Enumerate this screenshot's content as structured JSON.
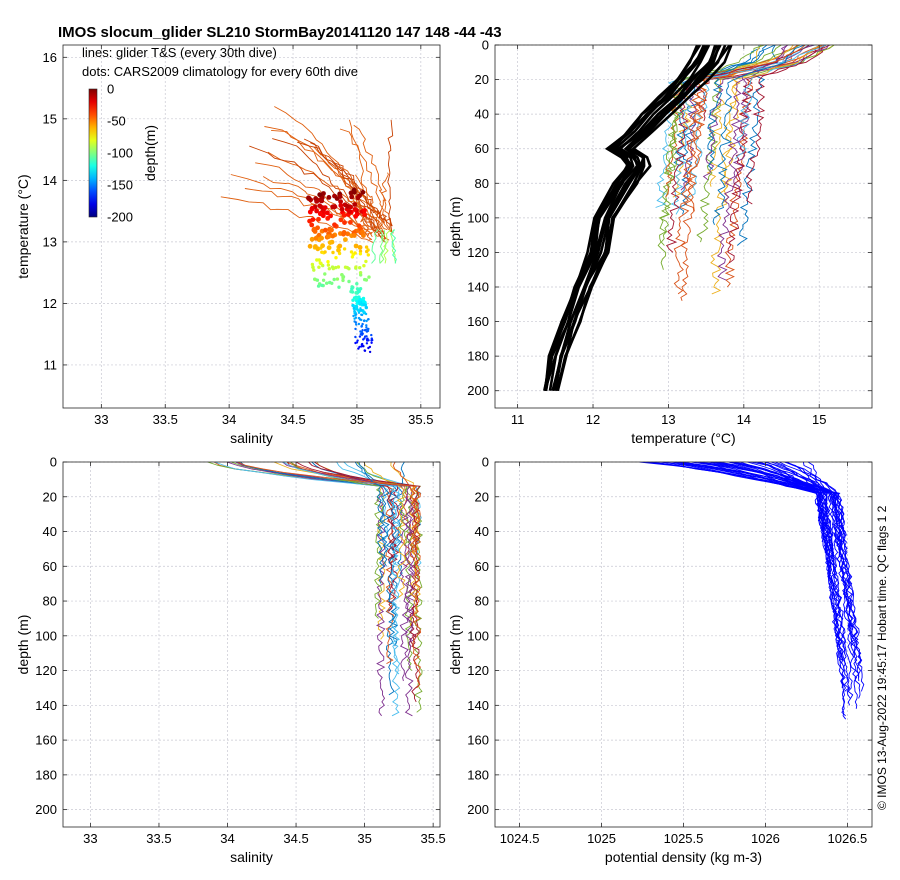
{
  "figure": {
    "title": "IMOS slocum_glider SL210 StormBay20141120 147  148  -44  -43",
    "stamp": "© IMOS 13-Aug-2022 19:45:17 Hobart time. QC flags 1  2"
  },
  "chart_data": [
    {
      "id": "ts",
      "type": "scatter",
      "xlabel": "salinity",
      "ylabel": "temperature (°C)",
      "xlim": [
        32.7,
        35.65
      ],
      "ylim": [
        10.3,
        16.2
      ],
      "xticks": [
        33,
        33.5,
        34,
        34.5,
        35,
        35.5
      ],
      "yticks": [
        11,
        12,
        13,
        14,
        15,
        16
      ],
      "grid": true,
      "annotations": [
        "lines: glider T&S (every 30th dive)",
        "dots: CARS2009 climatology for every 60th dive"
      ],
      "colorbar": {
        "label": "depth(m)",
        "ticks": [
          0,
          -50,
          -100,
          -150,
          -200
        ],
        "range": [
          -200,
          0
        ]
      },
      "series": [
        {
          "kind": "glider_lines",
          "shallow_end": [
            34.5,
            14.9
          ],
          "deep_end": [
            35.2,
            13.1
          ],
          "surface_salinity_range": [
            33.85,
            35.4
          ],
          "surface_temperature_range": [
            13.6,
            15.2
          ],
          "profiles": 26
        },
        {
          "kind": "climatology_dots",
          "salinity_range": [
            34.55,
            35.15
          ],
          "temperature_range": [
            11.25,
            13.85
          ],
          "depth_range": [
            -200,
            0
          ]
        }
      ]
    },
    {
      "id": "temp",
      "type": "line",
      "xlabel": "temperature (°C)",
      "ylabel": "depth (m)",
      "xlim": [
        10.7,
        15.7
      ],
      "ylim": [
        0,
        210
      ],
      "yreversed": true,
      "xticks": [
        11,
        12,
        13,
        14,
        15
      ],
      "yticks": [
        0,
        20,
        40,
        60,
        80,
        100,
        120,
        140,
        160,
        180,
        200
      ],
      "grid": true,
      "series": [
        {
          "kind": "climatology_black",
          "depth": [
            0,
            10,
            20,
            30,
            40,
            50,
            60,
            65,
            70,
            80,
            100,
            120,
            140,
            160,
            180,
            200
          ],
          "temperature": [
            13.4,
            13.3,
            13.1,
            12.9,
            12.65,
            12.45,
            12.2,
            12.4,
            12.45,
            12.3,
            12.05,
            11.95,
            11.75,
            11.6,
            11.45,
            11.35
          ],
          "profiles": 14,
          "spread": 0.45
        },
        {
          "kind": "glider_colored",
          "profiles": 30,
          "surface_temperature_range": [
            14.2,
            15.2
          ],
          "deep_temperature_range": [
            12.8,
            14.0
          ]
        }
      ]
    },
    {
      "id": "sal",
      "type": "line",
      "xlabel": "salinity",
      "ylabel": "depth (m)",
      "xlim": [
        32.8,
        35.55
      ],
      "ylim": [
        0,
        210
      ],
      "yreversed": true,
      "xticks": [
        33,
        33.5,
        34,
        34.5,
        35,
        35.5
      ],
      "yticks": [
        0,
        20,
        40,
        60,
        80,
        100,
        120,
        140,
        160,
        180,
        200
      ],
      "grid": true,
      "series": [
        {
          "kind": "glider_colored",
          "profiles": 30,
          "surface_salinity_range": [
            33.85,
            35.4
          ],
          "deep_salinity_range": [
            35.1,
            35.4
          ],
          "max_depth": 150
        }
      ]
    },
    {
      "id": "dens",
      "type": "line",
      "xlabel": "potential density (kg m-3)",
      "ylabel": "depth (m)",
      "xlim": [
        1024.35,
        1026.65
      ],
      "ylim": [
        0,
        210
      ],
      "yreversed": true,
      "xticks": [
        1024.5,
        1025,
        1025.5,
        1026,
        1026.5
      ],
      "yticks": [
        0,
        20,
        40,
        60,
        80,
        100,
        120,
        140,
        160,
        180,
        200
      ],
      "grid": true,
      "series": [
        {
          "kind": "glider_blue",
          "color": "#0000ff",
          "profiles": 40,
          "surface_density_range": [
            1025.2,
            1026.3
          ],
          "deep_density_range": [
            1026.45,
            1026.6
          ],
          "max_depth": 150
        }
      ]
    }
  ]
}
